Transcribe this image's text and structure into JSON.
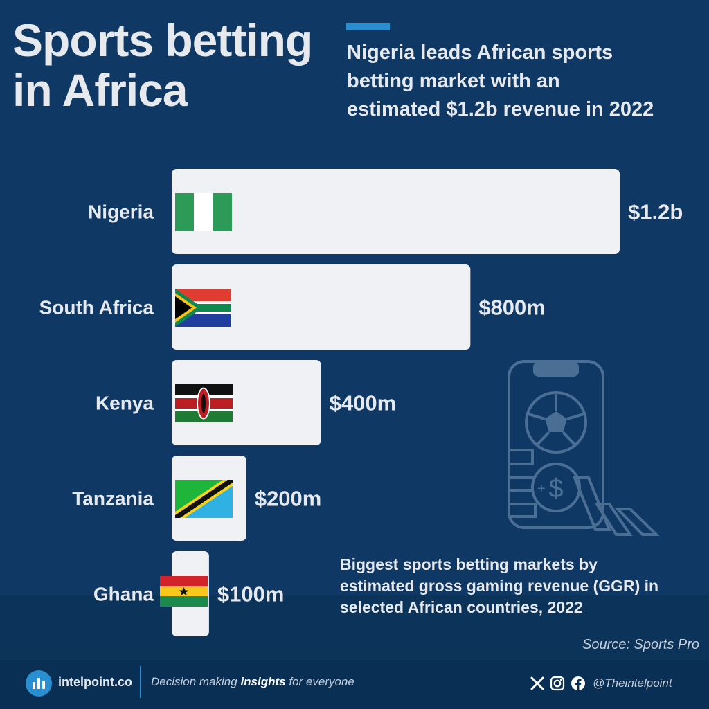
{
  "header": {
    "title_line1": "Sports betting",
    "title_line2": "in Africa",
    "subtitle_line1": "Nigeria leads African sports",
    "subtitle_line2": "betting market with an",
    "subtitle_line3": "estimated $1.2b revenue in 2022"
  },
  "chart_data": {
    "type": "bar",
    "orientation": "horizontal",
    "categories": [
      "Nigeria",
      "South Africa",
      "Kenya",
      "Tanzania",
      "Ghana"
    ],
    "values": [
      1200,
      800,
      400,
      200,
      100
    ],
    "unit": "USD millions",
    "value_labels": [
      "$1.2b",
      "$800m",
      "$400m",
      "$200m",
      "$100m"
    ],
    "title": "Biggest sports betting markets by estimated gross gaming revenue (GGR) in selected African countries, 2022",
    "xlabel": "",
    "ylabel": "",
    "xlim": [
      0,
      1200
    ],
    "grid": false,
    "bar_color": "#f0f1f4",
    "background_color": "#0f3865"
  },
  "caption": {
    "line1": "Biggest sports betting markets by",
    "line2": "estimated gross gaming revenue (GGR) in",
    "line3": "selected African countries, 2022"
  },
  "source": "Source: Sports Pro",
  "footer": {
    "site": "intelpoint.co",
    "tagline_pre": "Decision making ",
    "tagline_bold": "insights",
    "tagline_post": " for everyone",
    "handle": "@Theintelpoint",
    "icons": [
      "x-icon",
      "instagram-icon",
      "facebook-icon"
    ]
  },
  "colors": {
    "background": "#0f3865",
    "accent": "#2a8fd0",
    "text": "#e6e9ee"
  }
}
